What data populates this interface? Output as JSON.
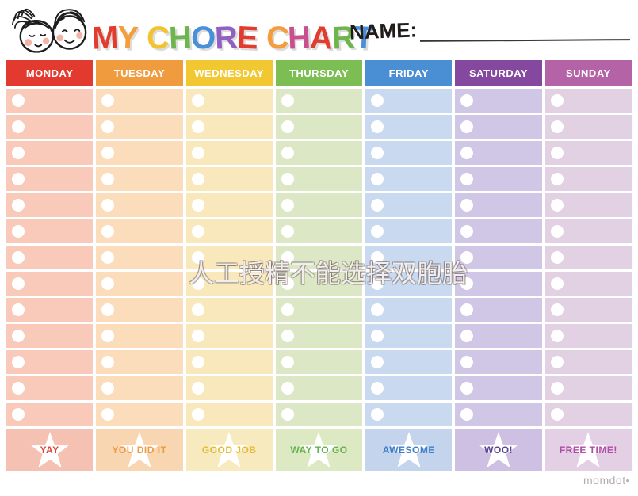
{
  "page": {
    "name_label": "NAME:",
    "watermark": "人工授精不能选择双胞胎",
    "site_credit": "momdot•"
  },
  "title_letters": [
    {
      "ch": "M",
      "color": "#e23c2e"
    },
    {
      "ch": "Y",
      "color": "#f59d3d"
    },
    {
      "ch": " "
    },
    {
      "ch": "C",
      "color": "#f2c331"
    },
    {
      "ch": "H",
      "color": "#6db54c"
    },
    {
      "ch": "O",
      "color": "#4a90d9"
    },
    {
      "ch": "R",
      "color": "#9061c2"
    },
    {
      "ch": "E",
      "color": "#e23c2e"
    },
    {
      "ch": " "
    },
    {
      "ch": "C",
      "color": "#f59d3d"
    },
    {
      "ch": "H",
      "color": "#c94f8e"
    },
    {
      "ch": "A",
      "color": "#e23c2e"
    },
    {
      "ch": "R",
      "color": "#6db54c"
    },
    {
      "ch": "T",
      "color": "#4a90d9"
    }
  ],
  "chart": {
    "rows_per_day": 13,
    "checkbox_color": "#ffffff",
    "star_color": "#ffffff",
    "days": [
      {
        "label": "MONDAY",
        "header_color": "#e23a2e",
        "body_color": "#f9c9ba",
        "footer_bg": "#f5c1b2",
        "footer_text_color": "#df4434",
        "footer_label": "YAY"
      },
      {
        "label": "TUESDAY",
        "header_color": "#f09b3d",
        "body_color": "#fbdcbb",
        "footer_bg": "#f9d6b2",
        "footer_text_color": "#ef9a40",
        "footer_label": "YOU DID IT"
      },
      {
        "label": "WEDNESDAY",
        "header_color": "#f1c732",
        "body_color": "#f8e8bc",
        "footer_bg": "#f8eabf",
        "footer_text_color": "#e5ba33",
        "footer_label": "GOOD JOB"
      },
      {
        "label": "THURSDAY",
        "header_color": "#7cbe54",
        "body_color": "#dbe7c5",
        "footer_bg": "#dde9c3",
        "footer_text_color": "#62b14e",
        "footer_label": "WAY TO GO"
      },
      {
        "label": "FRIDAY",
        "header_color": "#4a8fd3",
        "body_color": "#c9d9ef",
        "footer_bg": "#c4d4ed",
        "footer_text_color": "#3e7ecb",
        "footer_label": "AWESOME"
      },
      {
        "label": "SATURDAY",
        "header_color": "#84489f",
        "body_color": "#d0c6e6",
        "footer_bg": "#cdc0e3",
        "footer_text_color": "#5a4293",
        "footer_label": "WOO!"
      },
      {
        "label": "SUNDAY",
        "header_color": "#b464a6",
        "body_color": "#e1d1e3",
        "footer_bg": "#e4d0e4",
        "footer_text_color": "#b14ba4",
        "footer_label": "FREE TIME!"
      }
    ]
  }
}
